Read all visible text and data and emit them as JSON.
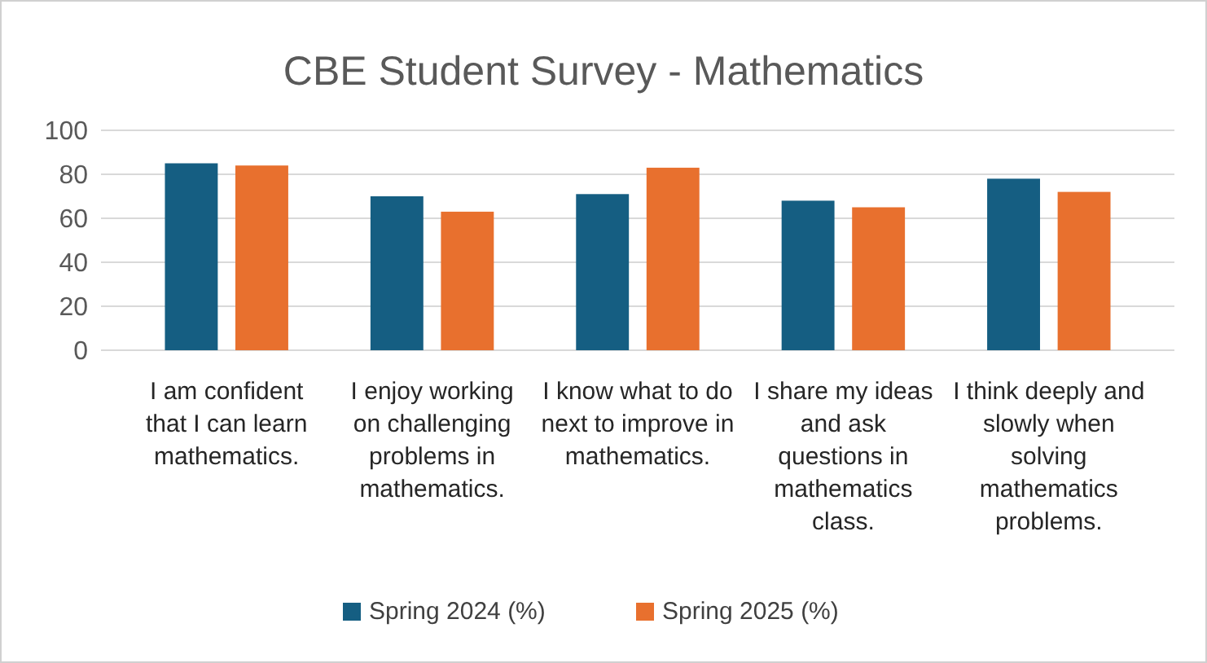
{
  "chart_data": {
    "type": "bar",
    "title": "CBE Student Survey - Mathematics",
    "categories": [
      "I am confident that I can learn mathematics.",
      "I enjoy working on challenging problems in mathematics.",
      "I know what to do next to improve in mathematics.",
      "I share my ideas and ask questions in mathematics class.",
      "I think deeply and slowly when solving mathematics problems."
    ],
    "series": [
      {
        "name": "Spring 2024 (%)",
        "color": "#155e82",
        "values": [
          85,
          70,
          71,
          68,
          78
        ]
      },
      {
        "name": "Spring 2025 (%)",
        "color": "#e8702e",
        "values": [
          84,
          63,
          83,
          65,
          72
        ]
      }
    ],
    "ylim": [
      0,
      100
    ],
    "yticks": [
      0,
      20,
      40,
      60,
      80,
      100
    ],
    "grid": "y",
    "legend": "bottom"
  }
}
